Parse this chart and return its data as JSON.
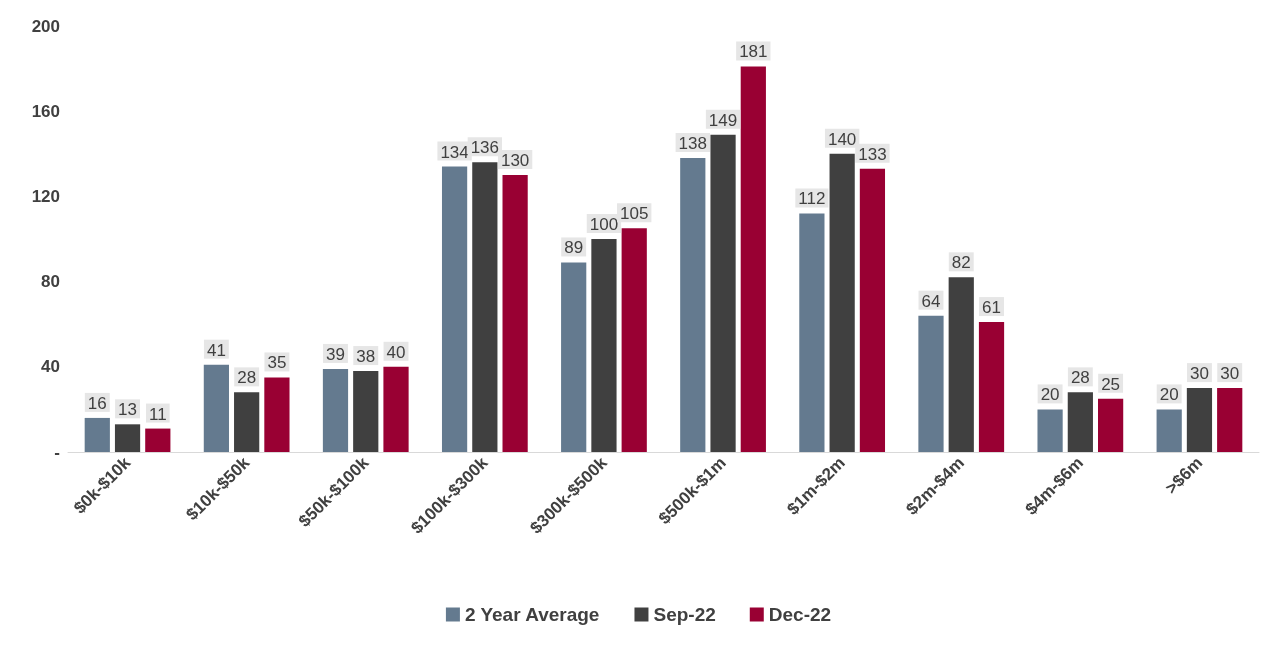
{
  "chart_data": {
    "type": "bar",
    "categories": [
      "$0k-$10k",
      "$10k-$50k",
      "$50k-$100k",
      "$100k-$300k",
      "$300k-$500k",
      "$500k-$1m",
      "$1m-$2m",
      "$2m-$4m",
      "$4m-$6m",
      ">$6m"
    ],
    "series": [
      {
        "name": "2 Year Average",
        "color": "#647a8f",
        "values": [
          16,
          41,
          39,
          134,
          89,
          138,
          112,
          64,
          20,
          20
        ]
      },
      {
        "name": "Sep-22",
        "color": "#404040",
        "values": [
          13,
          28,
          38,
          136,
          100,
          149,
          140,
          82,
          28,
          30
        ]
      },
      {
        "name": "Dec-22",
        "color": "#990033",
        "values": [
          11,
          35,
          40,
          130,
          105,
          181,
          133,
          61,
          25,
          30
        ]
      }
    ],
    "ylim": [
      0,
      200
    ],
    "yticks": [
      {
        "value": 0,
        "label": "-"
      },
      40,
      80,
      120,
      160,
      200
    ],
    "grid": false,
    "legend": "bottom",
    "data_labels": true
  }
}
